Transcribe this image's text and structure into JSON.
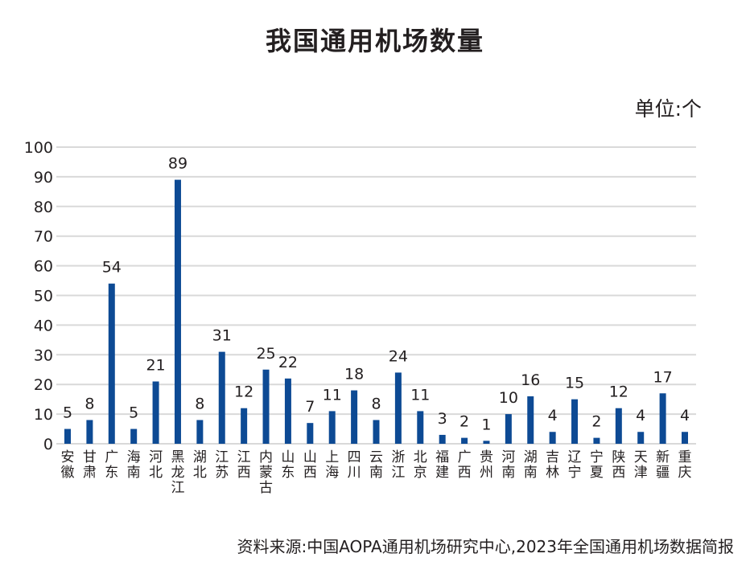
{
  "chart_data": {
    "type": "bar",
    "title": "我国通用机场数量",
    "unit": "单位:个",
    "source": "资料来源:中国AOPA通用机场研究中心,2023年全国通用机场数据简报",
    "categories": [
      "安徽",
      "甘肃",
      "广东",
      "海南",
      "河北",
      "黑龙江",
      "湖北",
      "江苏",
      "江西",
      "内蒙古",
      "山东",
      "山西",
      "上海",
      "四川",
      "云南",
      "浙江",
      "北京",
      "福建",
      "广西",
      "贵州",
      "河南",
      "湖南",
      "吉林",
      "辽宁",
      "宁夏",
      "陕西",
      "天津",
      "新疆",
      "重庆"
    ],
    "values": [
      5,
      8,
      54,
      5,
      21,
      89,
      8,
      31,
      12,
      25,
      22,
      7,
      11,
      18,
      8,
      24,
      11,
      3,
      2,
      1,
      10,
      16,
      4,
      15,
      2,
      12,
      4,
      17,
      4
    ],
    "ylim": [
      0,
      100
    ],
    "yticks": [
      0,
      10,
      20,
      30,
      40,
      50,
      60,
      70,
      80,
      90,
      100
    ],
    "xlabel": "",
    "ylabel": "",
    "grid": true,
    "bar_color": "#0d4a94",
    "grid_color": "#d9d9d9"
  }
}
